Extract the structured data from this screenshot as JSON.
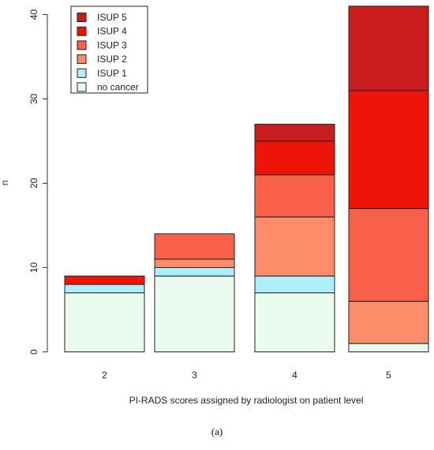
{
  "figure": {
    "caption": "(a)"
  },
  "chart_data": {
    "type": "bar",
    "stacked": true,
    "categories": [
      "2",
      "3",
      "4",
      "5"
    ],
    "xlabel": "PI-RADS scores assigned by radiologist on patient level",
    "ylabel": "n",
    "ylim": [
      0,
      40
    ],
    "yticks": [
      0,
      10,
      20,
      30,
      40
    ],
    "grid": false,
    "legend_position": "top-left",
    "series": [
      {
        "name": "no cancer",
        "color": "#eafbef",
        "values": [
          7,
          9,
          7,
          1
        ]
      },
      {
        "name": "ISUP 1",
        "color": "#aeeefa",
        "values": [
          1,
          1,
          2,
          0
        ]
      },
      {
        "name": "ISUP 2",
        "color": "#fc8c6a",
        "values": [
          0,
          1,
          7,
          5
        ]
      },
      {
        "name": "ISUP 3",
        "color": "#f8604a",
        "values": [
          0,
          3,
          5,
          11
        ]
      },
      {
        "name": "ISUP 4",
        "color": "#ee1508",
        "values": [
          1,
          0,
          4,
          14
        ]
      },
      {
        "name": "ISUP 5",
        "color": "#c91c1e",
        "values": [
          0,
          0,
          2,
          10
        ]
      }
    ],
    "legend_order": [
      "ISUP 5",
      "ISUP 4",
      "ISUP 3",
      "ISUP 2",
      "ISUP 1",
      "no cancer"
    ]
  }
}
